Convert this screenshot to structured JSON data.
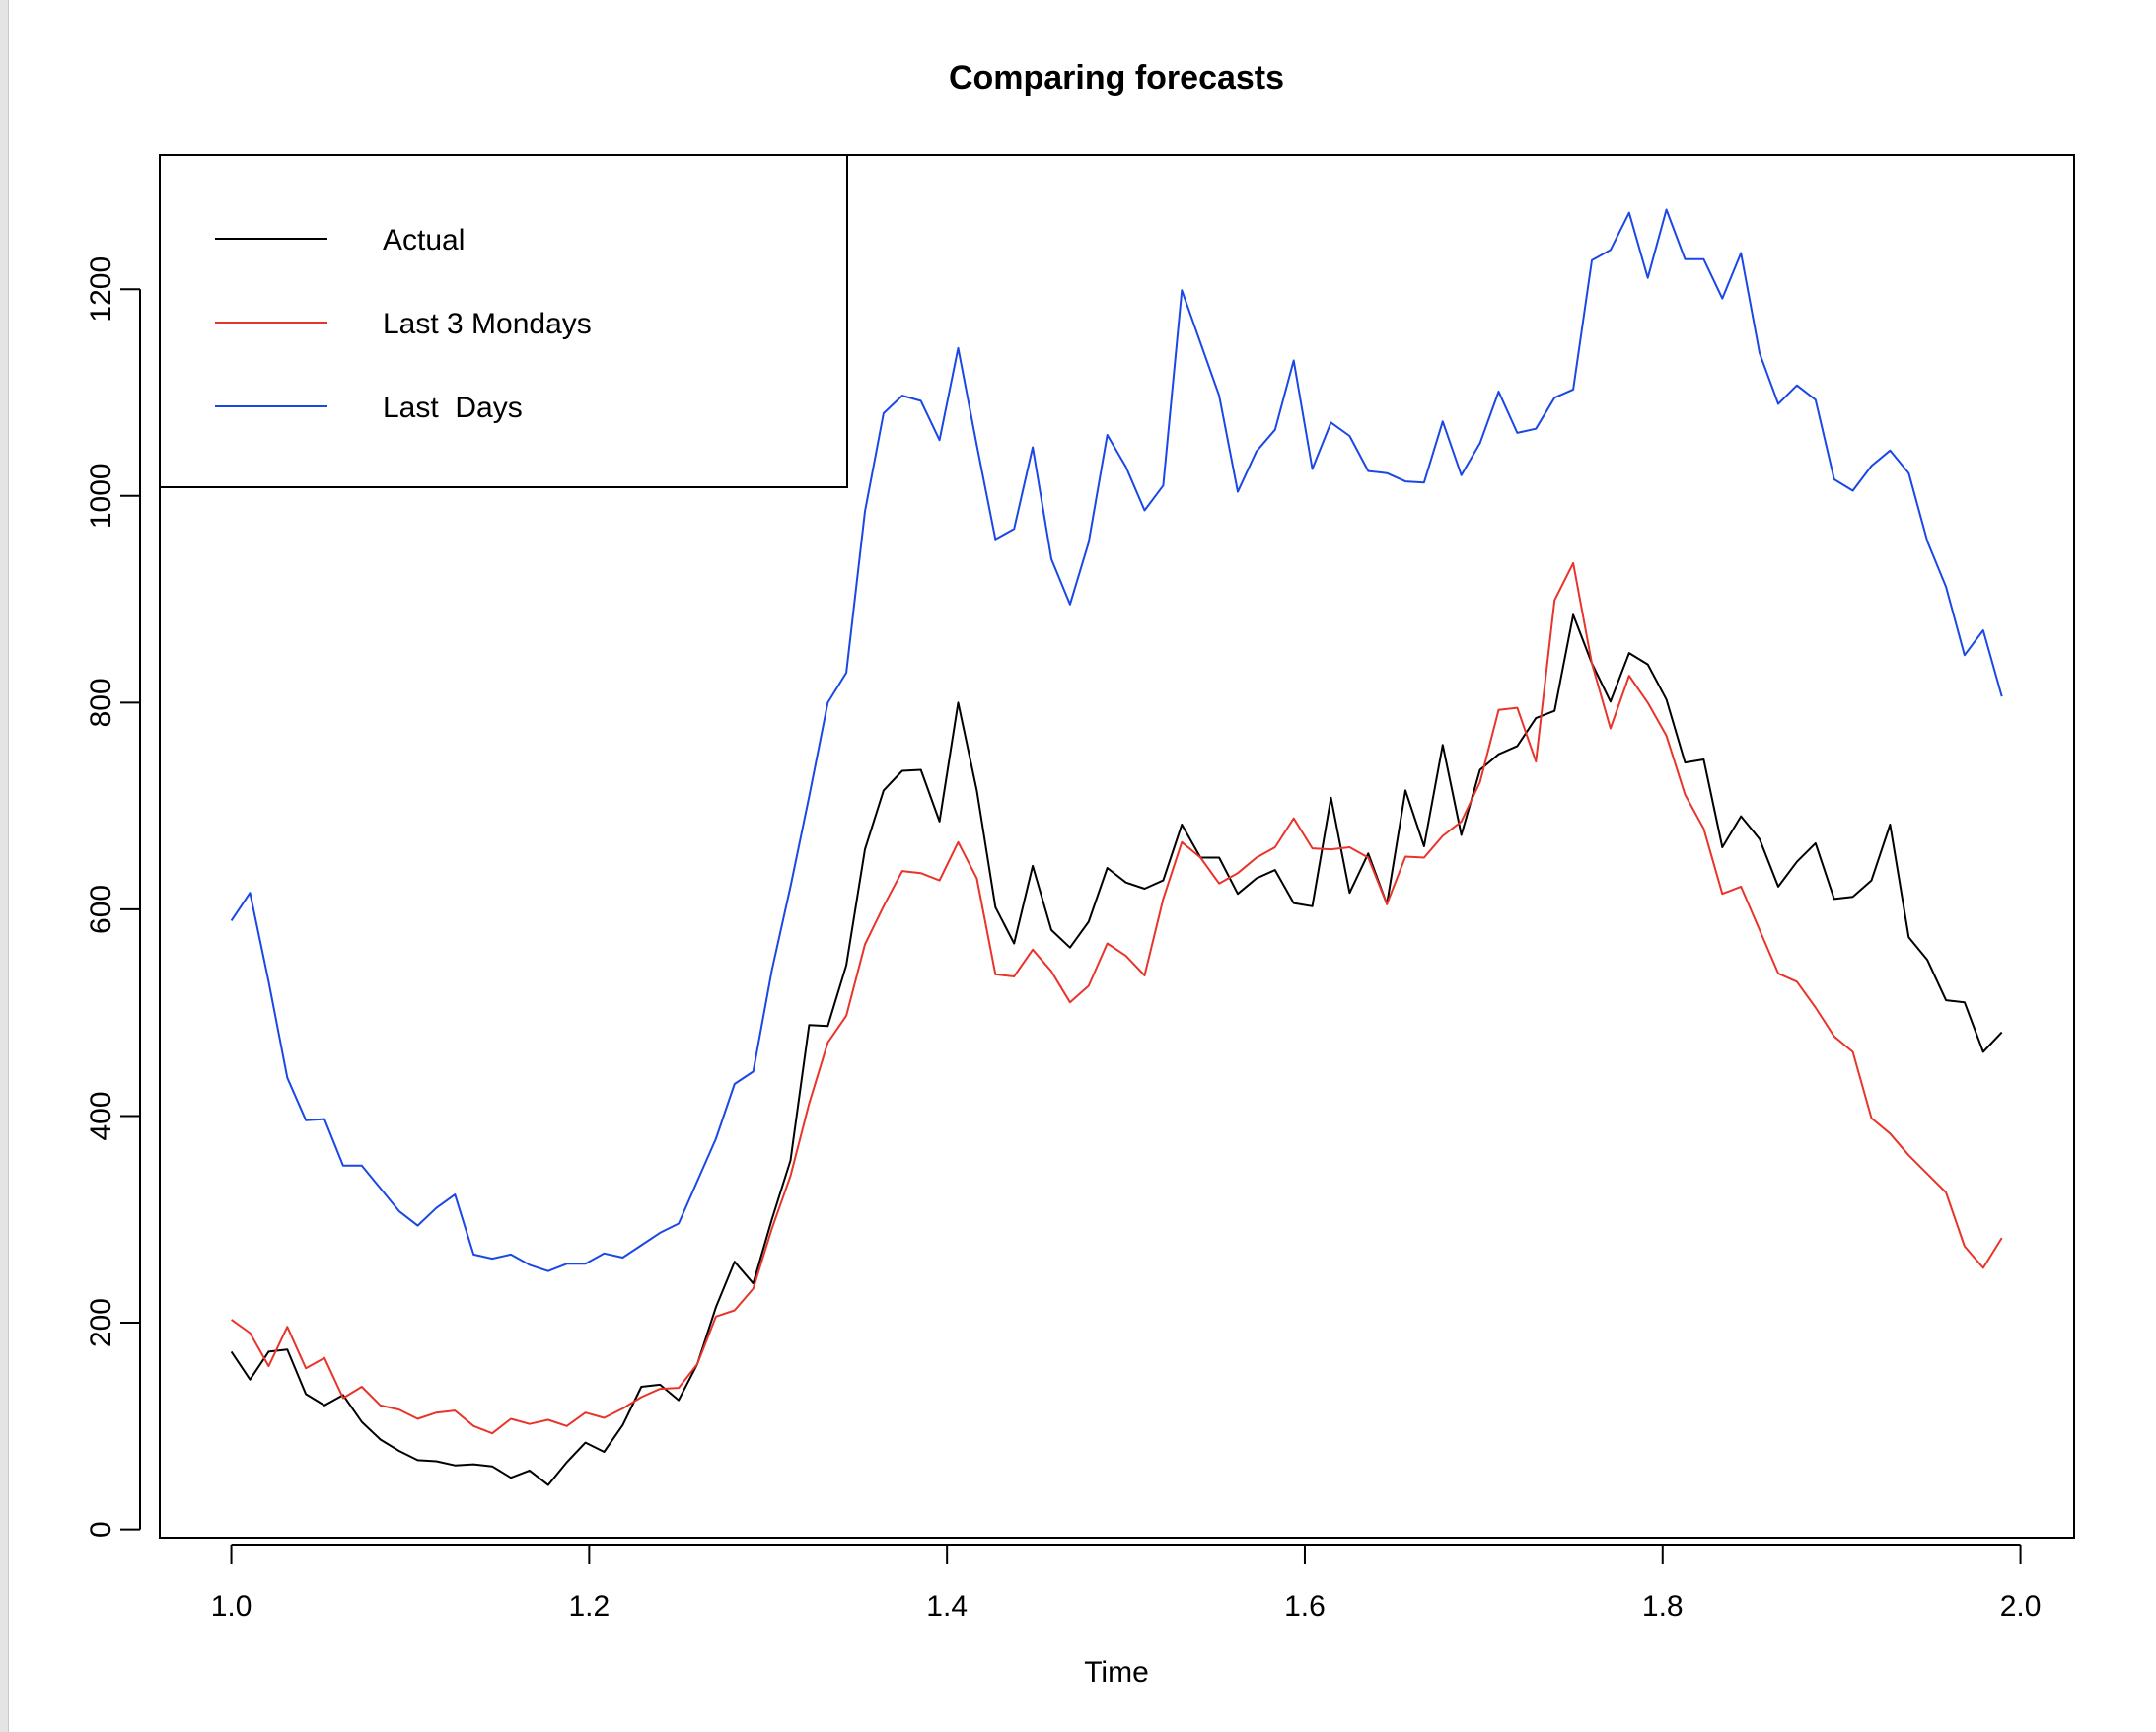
{
  "chart_data": {
    "type": "line",
    "title": "Comparing forecasts",
    "xlabel": "Time",
    "ylabel": "",
    "xlim": [
      0.96,
      2.03
    ],
    "ylim": [
      -8,
      1330
    ],
    "x_ticks": [
      1.0,
      1.2,
      1.4,
      1.6,
      1.8,
      2.0
    ],
    "x_tick_labels": [
      "1.0",
      "1.2",
      "1.4",
      "1.6",
      "1.8",
      "2.0"
    ],
    "y_ticks": [
      0,
      200,
      400,
      600,
      800,
      1000,
      1200
    ],
    "y_tick_labels": [
      "0",
      "200",
      "400",
      "600",
      "800",
      "1000",
      "1200"
    ],
    "grid": false,
    "legend_position": "top-left",
    "x_start": 1.0,
    "x_step": 0.010417,
    "series": [
      {
        "name": "Actual",
        "color": "#000000",
        "values": [
          172,
          145,
          172,
          174,
          131,
          120,
          130,
          104,
          87,
          76,
          67,
          66,
          62,
          63,
          61,
          50,
          57,
          43,
          65,
          84,
          75,
          101,
          138,
          140,
          125,
          160,
          215,
          259,
          238,
          300,
          357,
          488,
          487,
          546,
          658,
          715,
          734,
          735,
          685,
          800,
          715,
          602,
          567,
          642,
          580,
          563,
          588,
          640,
          626,
          620,
          628,
          682,
          650,
          650,
          615,
          630,
          638,
          606,
          603,
          708,
          616,
          654,
          605,
          715,
          661,
          759,
          672,
          735,
          750,
          758,
          785,
          792,
          885,
          838,
          801,
          848,
          837,
          803,
          742,
          745,
          660,
          690,
          668,
          622,
          646,
          664,
          610,
          612,
          628,
          682,
          573,
          551,
          512,
          510,
          462,
          481
        ]
      },
      {
        "name": "Last 3 Mondays",
        "color": "#e8342b",
        "values": [
          203,
          190,
          158,
          196,
          156,
          166,
          127,
          138,
          120,
          116,
          107,
          113,
          115,
          100,
          93,
          107,
          102,
          106,
          100,
          113,
          108,
          117,
          128,
          136,
          137,
          160,
          206,
          212,
          233,
          291,
          342,
          412,
          471,
          497,
          566,
          603,
          637,
          635,
          628,
          665,
          630,
          537,
          535,
          561,
          540,
          510,
          526,
          567,
          555,
          536,
          610,
          665,
          650,
          625,
          635,
          650,
          660,
          688,
          659,
          658,
          660,
          650,
          605,
          651,
          650,
          671,
          685,
          723,
          793,
          795,
          743,
          899,
          935,
          838,
          775,
          826,
          800,
          768,
          711,
          678,
          615,
          622,
          580,
          538,
          530,
          505,
          477,
          462,
          398,
          383,
          362,
          344,
          326,
          274,
          253,
          282
        ]
      },
      {
        "name": "Last  Days",
        "color": "#1a47e5",
        "values": [
          589,
          616,
          530,
          437,
          396,
          397,
          352,
          352,
          330,
          308,
          294,
          311,
          324,
          266,
          262,
          266,
          256,
          250,
          257,
          257,
          267,
          263,
          275,
          287,
          296,
          337,
          378,
          431,
          443,
          541,
          622,
          709,
          800,
          829,
          985,
          1080,
          1097,
          1092,
          1054,
          1143,
          1049,
          958,
          968,
          1047,
          939,
          895,
          955,
          1059,
          1028,
          986,
          1010,
          1199,
          1148,
          1097,
          1004,
          1043,
          1064,
          1131,
          1026,
          1071,
          1058,
          1024,
          1022,
          1014,
          1013,
          1072,
          1020,
          1051,
          1101,
          1061,
          1065,
          1095,
          1103,
          1228,
          1238,
          1274,
          1211,
          1277,
          1229,
          1229,
          1191,
          1235,
          1138,
          1089,
          1107,
          1093,
          1016,
          1005,
          1029,
          1044,
          1022,
          956,
          912,
          846,
          870,
          806
        ]
      }
    ]
  }
}
